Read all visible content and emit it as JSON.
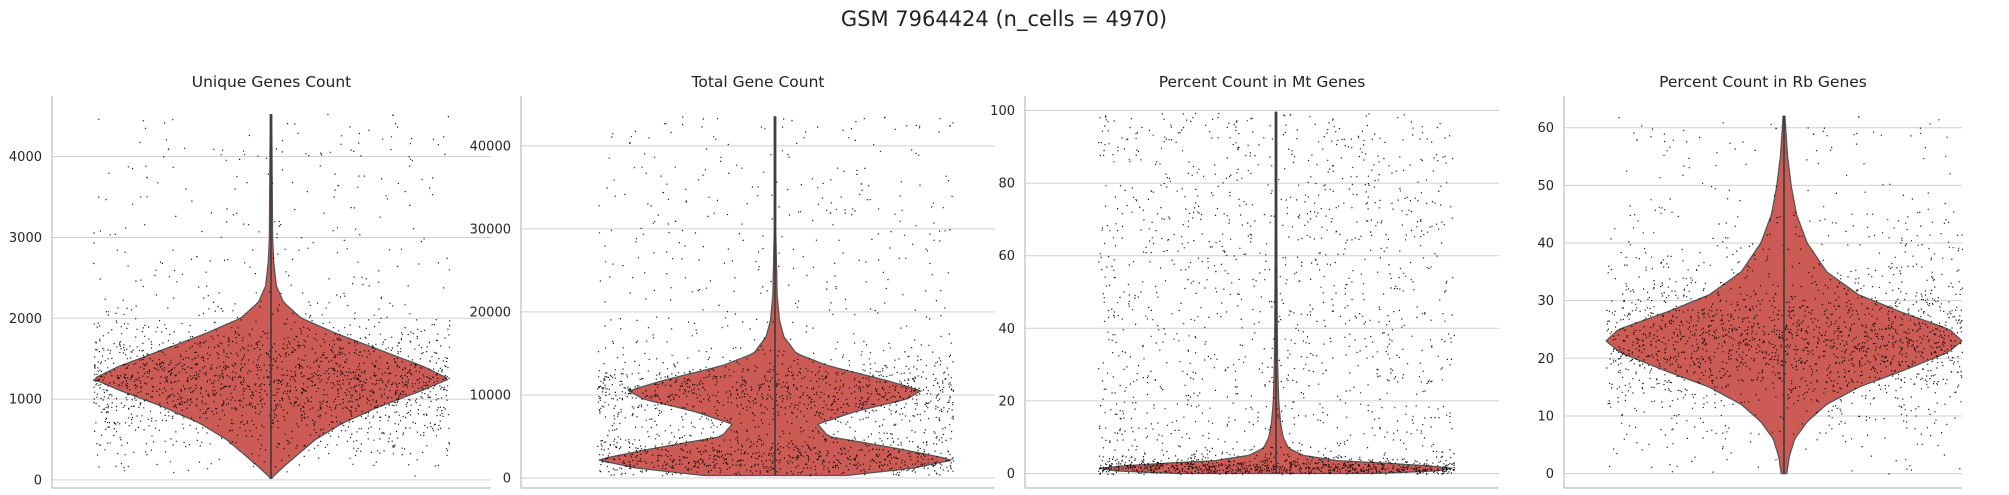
{
  "figure": {
    "suptitle": "GSM 7964424 (n_cells = 4970)"
  },
  "style": {
    "violin_fill": "#cd5b55",
    "violin_edge": "#555555",
    "point_color": "#000000",
    "grid_color": "#cfcfcf",
    "axis_color": "#bdbdbd"
  },
  "chart_data": [
    {
      "type": "violin",
      "title": "Unique Genes Count",
      "xlabel": "",
      "ylabel": "",
      "yticks": [
        0,
        1000,
        2000,
        3000,
        4000
      ],
      "yticklabels": [
        "0",
        "1000",
        "2000",
        "3000",
        "4000"
      ],
      "ylim": [
        -100,
        4750
      ],
      "grid": "horizontal",
      "n_points": 4970,
      "max": 4520,
      "density_profile": [
        [
          20,
          0.0
        ],
        [
          100,
          0.04
        ],
        [
          200,
          0.09
        ],
        [
          350,
          0.17
        ],
        [
          500,
          0.25
        ],
        [
          700,
          0.4
        ],
        [
          900,
          0.6
        ],
        [
          1100,
          0.84
        ],
        [
          1250,
          1.0
        ],
        [
          1400,
          0.86
        ],
        [
          1600,
          0.62
        ],
        [
          1800,
          0.38
        ],
        [
          2000,
          0.17
        ],
        [
          2200,
          0.07
        ],
        [
          2400,
          0.03
        ],
        [
          2700,
          0.015
        ],
        [
          3000,
          0.009
        ],
        [
          4520,
          0.004
        ]
      ],
      "outliers": [
        3650,
        3750,
        4050,
        4100,
        4520
      ]
    },
    {
      "type": "violin",
      "title": "Total Gene Count",
      "xlabel": "",
      "ylabel": "",
      "yticks": [
        0,
        10000,
        20000,
        30000,
        40000
      ],
      "yticklabels": [
        "0",
        "10000",
        "20000",
        "30000",
        "40000"
      ],
      "ylim": [
        -1200,
        46000
      ],
      "grid": "horizontal",
      "n_points": 4970,
      "max": 43500,
      "density_profile": [
        [
          300,
          0.4
        ],
        [
          1200,
          0.78
        ],
        [
          2200,
          1.0
        ],
        [
          3500,
          0.7
        ],
        [
          5000,
          0.3
        ],
        [
          6500,
          0.24
        ],
        [
          8000,
          0.45
        ],
        [
          9500,
          0.74
        ],
        [
          10500,
          0.82
        ],
        [
          11800,
          0.62
        ],
        [
          13500,
          0.3
        ],
        [
          15000,
          0.12
        ],
        [
          17000,
          0.05
        ],
        [
          19000,
          0.025
        ],
        [
          22000,
          0.012
        ],
        [
          26000,
          0.008
        ],
        [
          30000,
          0.004
        ],
        [
          43500,
          0.003
        ]
      ],
      "outliers": [
        31000,
        32000,
        35500,
        42500,
        43500
      ]
    },
    {
      "type": "violin",
      "title": "Percent Count in Mt Genes",
      "xlabel": "",
      "ylabel": "",
      "yticks": [
        0,
        20,
        40,
        60,
        80,
        100
      ],
      "yticklabels": [
        "0",
        "20",
        "40",
        "60",
        "80",
        "100"
      ],
      "ylim": [
        -4,
        104
      ],
      "grid": "horizontal",
      "n_points": 4970,
      "max": 99.5,
      "density_profile": [
        [
          0,
          0.55
        ],
        [
          0.7,
          0.9
        ],
        [
          1.5,
          1.0
        ],
        [
          2.5,
          0.75
        ],
        [
          3.5,
          0.35
        ],
        [
          5,
          0.15
        ],
        [
          7,
          0.07
        ],
        [
          10,
          0.04
        ],
        [
          14,
          0.025
        ],
        [
          20,
          0.015
        ],
        [
          30,
          0.009
        ],
        [
          40,
          0.007
        ],
        [
          60,
          0.005
        ],
        [
          99.5,
          0.003
        ]
      ],
      "outliers": [
        78,
        85,
        90,
        99
      ]
    },
    {
      "type": "violin",
      "title": "Percent Count in Rb Genes",
      "xlabel": "",
      "ylabel": "",
      "yticks": [
        0,
        10,
        20,
        30,
        40,
        50,
        60
      ],
      "yticklabels": [
        "0",
        "10",
        "20",
        "30",
        "40",
        "50",
        "60"
      ],
      "ylim": [
        -2.5,
        65.5
      ],
      "grid": "horizontal",
      "n_points": 4970,
      "max": 62,
      "density_profile": [
        [
          0,
          0.015
        ],
        [
          3,
          0.03
        ],
        [
          6,
          0.06
        ],
        [
          9,
          0.13
        ],
        [
          12,
          0.24
        ],
        [
          15,
          0.42
        ],
        [
          18,
          0.68
        ],
        [
          21,
          0.92
        ],
        [
          23,
          1.0
        ],
        [
          25,
          0.93
        ],
        [
          28,
          0.66
        ],
        [
          31,
          0.42
        ],
        [
          35,
          0.24
        ],
        [
          40,
          0.13
        ],
        [
          45,
          0.07
        ],
        [
          50,
          0.04
        ],
        [
          55,
          0.02
        ],
        [
          62,
          0.005
        ]
      ],
      "outliers": [
        58,
        59,
        60,
        62
      ]
    }
  ]
}
